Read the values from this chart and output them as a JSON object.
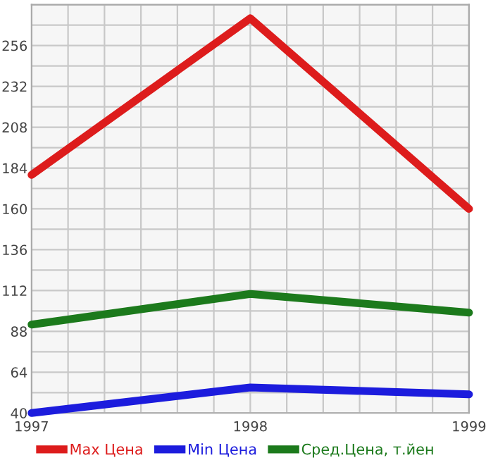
{
  "chart_data": {
    "type": "line",
    "x": [
      1997,
      1998,
      1999
    ],
    "series": [
      {
        "name": "Max Цена",
        "color": "#dd1c1c",
        "values": [
          180,
          272,
          160
        ]
      },
      {
        "name": "Min Цена",
        "color": "#1c1cdd",
        "values": [
          40,
          55,
          51
        ]
      },
      {
        "name": "Сред.Цена, т.йен",
        "color": "#1c7a1c",
        "values": [
          92,
          110,
          99
        ]
      }
    ],
    "xlim": [
      1997,
      1999
    ],
    "ylim": [
      40,
      280
    ],
    "xticks": [
      1997,
      {
        "value": 1997.1667,
        "label": null
      },
      {
        "value": 1997.3333,
        "label": null
      },
      {
        "value": 1997.5,
        "label": null
      },
      {
        "value": 1997.6667,
        "label": null
      },
      {
        "value": 1997.8333,
        "label": null
      },
      1998,
      {
        "value": 1998.1667,
        "label": null
      },
      {
        "value": 1998.3333,
        "label": null
      },
      {
        "value": 1998.5,
        "label": null
      },
      {
        "value": 1998.6667,
        "label": null
      },
      {
        "value": 1998.8333,
        "label": null
      },
      1999
    ],
    "yticks": [
      40,
      {
        "value": 52,
        "label": null
      },
      64,
      {
        "value": 76,
        "label": null
      },
      88,
      {
        "value": 100,
        "label": null
      },
      112,
      {
        "value": 124,
        "label": null
      },
      136,
      {
        "value": 148,
        "label": null
      },
      160,
      {
        "value": 172,
        "label": null
      },
      184,
      {
        "value": 196,
        "label": null
      },
      208,
      {
        "value": 220,
        "label": null
      },
      232,
      {
        "value": 244,
        "label": null
      },
      256,
      {
        "value": 268,
        "label": null
      },
      {
        "value": 280,
        "label": null
      }
    ],
    "grid": true,
    "legend": "bottom",
    "marker": "none",
    "line_style": "solid"
  }
}
